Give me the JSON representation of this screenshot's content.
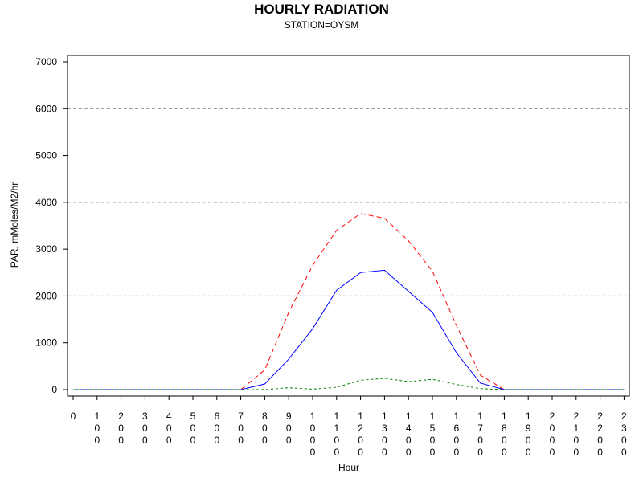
{
  "chart_data": {
    "type": "line",
    "title": "HOURLY RADIATION",
    "subtitle": "STATION=OYSM",
    "xlabel": "Hour",
    "ylabel": "PAR, mMoles/M2/hr",
    "x": [
      "0",
      "100",
      "200",
      "300",
      "400",
      "500",
      "600",
      "700",
      "800",
      "900",
      "1000",
      "1100",
      "1200",
      "1300",
      "1400",
      "1500",
      "1600",
      "1700",
      "1800",
      "1900",
      "2000",
      "2100",
      "2200",
      "2300"
    ],
    "ylim": [
      0,
      7000
    ],
    "yticks": [
      0,
      1000,
      2000,
      3000,
      4000,
      5000,
      6000,
      7000
    ],
    "grid_y": [
      2000,
      4000,
      6000
    ],
    "series": [
      {
        "color": "#ff0000",
        "dash": "dashed",
        "values": [
          0,
          0,
          0,
          0,
          0,
          0,
          0,
          0,
          420,
          1650,
          2650,
          3400,
          3760,
          3660,
          3180,
          2530,
          1370,
          310,
          0,
          0,
          0,
          0,
          0,
          0
        ]
      },
      {
        "color": "#0000ff",
        "dash": "solid",
        "values": [
          0,
          0,
          0,
          0,
          0,
          0,
          0,
          0,
          120,
          650,
          1300,
          2120,
          2500,
          2550,
          2100,
          1650,
          790,
          140,
          0,
          0,
          0,
          0,
          0,
          0
        ]
      },
      {
        "color": "#008000",
        "dash": "dotted",
        "values": [
          0,
          0,
          0,
          0,
          0,
          0,
          0,
          0,
          0,
          40,
          10,
          50,
          200,
          240,
          170,
          220,
          110,
          20,
          0,
          0,
          0,
          0,
          0,
          0
        ]
      }
    ]
  }
}
